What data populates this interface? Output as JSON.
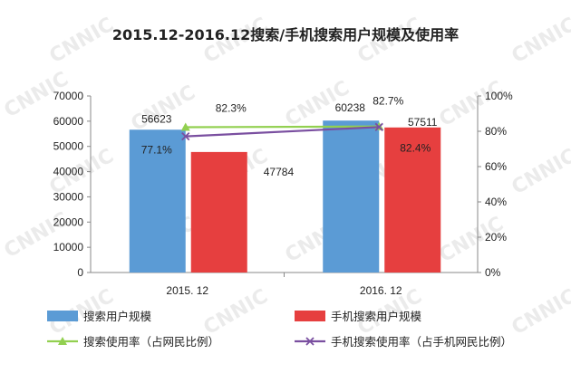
{
  "chart_data": {
    "type": "bar",
    "title": "2015.12-2016.12搜索/手机搜索用户规模及使用率",
    "watermark": "CNNIC",
    "categories": [
      "2015. 12",
      "2016. 12"
    ],
    "y_left": {
      "min": 0,
      "max": 70000,
      "ticks": [
        "0",
        "10000",
        "20000",
        "30000",
        "40000",
        "50000",
        "60000",
        "70000"
      ]
    },
    "y_right": {
      "min": 0,
      "max": 100,
      "ticks": [
        "0%",
        "20%",
        "40%",
        "60%",
        "80%",
        "100%"
      ]
    },
    "bar_series": [
      {
        "name": "搜索用户规模",
        "color": "#5b9bd5",
        "values": [
          56623,
          60238
        ],
        "labels": [
          "56623",
          "60238"
        ]
      },
      {
        "name": "手机搜索用户规模",
        "color": "#e63f3f",
        "values": [
          47784,
          57511
        ],
        "labels": [
          "47784",
          "57511"
        ]
      }
    ],
    "line_series": [
      {
        "name": "搜索使用率（占网民比例）",
        "color": "#92d050",
        "marker": "triangle",
        "values": [
          82.3,
          82.7
        ],
        "labels": [
          "82.3%",
          "82.7%"
        ]
      },
      {
        "name": "手机搜索使用率（占手机网民比例）",
        "color": "#7a4fa0",
        "marker": "x",
        "values": [
          77.1,
          82.4
        ],
        "labels": [
          "77.1%",
          "82.4%"
        ]
      }
    ],
    "grid": false,
    "legend_position": "bottom"
  }
}
